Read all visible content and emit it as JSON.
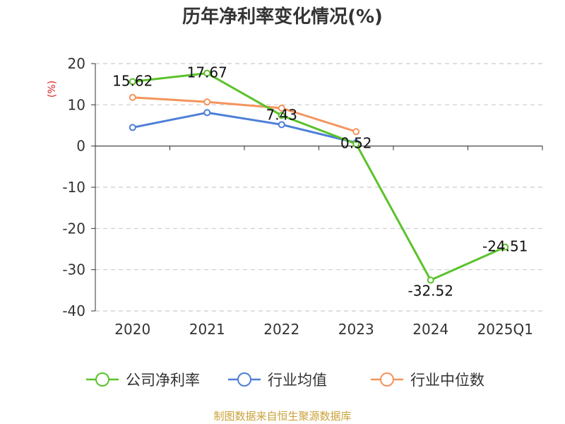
{
  "chart_data": {
    "type": "line",
    "title": "历年净利率变化情况(%)",
    "ylabel": "(%)",
    "xlabel": "",
    "categories": [
      "2020",
      "2021",
      "2022",
      "2023",
      "2024",
      "2025Q1"
    ],
    "ylim": [
      -40,
      20
    ],
    "yticks": [
      20,
      10,
      0,
      -10,
      -20,
      -30,
      -40
    ],
    "grid": true,
    "legend_position": "bottom",
    "series": [
      {
        "name": "公司净利率",
        "color": "#5bc22b",
        "label_values": true,
        "values": [
          15.62,
          17.67,
          7.43,
          0.52,
          -32.52,
          -24.51
        ]
      },
      {
        "name": "行业均值",
        "color": "#4e7fd8",
        "label_values": false,
        "values": [
          4.5,
          8.1,
          5.2,
          0.8,
          null,
          null
        ]
      },
      {
        "name": "行业中位数",
        "color": "#f4945c",
        "label_values": false,
        "values": [
          11.8,
          10.7,
          9.2,
          3.5,
          null,
          null
        ]
      }
    ],
    "data_labels": [
      "15.62",
      "17.67",
      "7.43",
      "0.52",
      "-32.52",
      "-24.51"
    ]
  },
  "source": "制图数据来自恒生聚源数据库"
}
